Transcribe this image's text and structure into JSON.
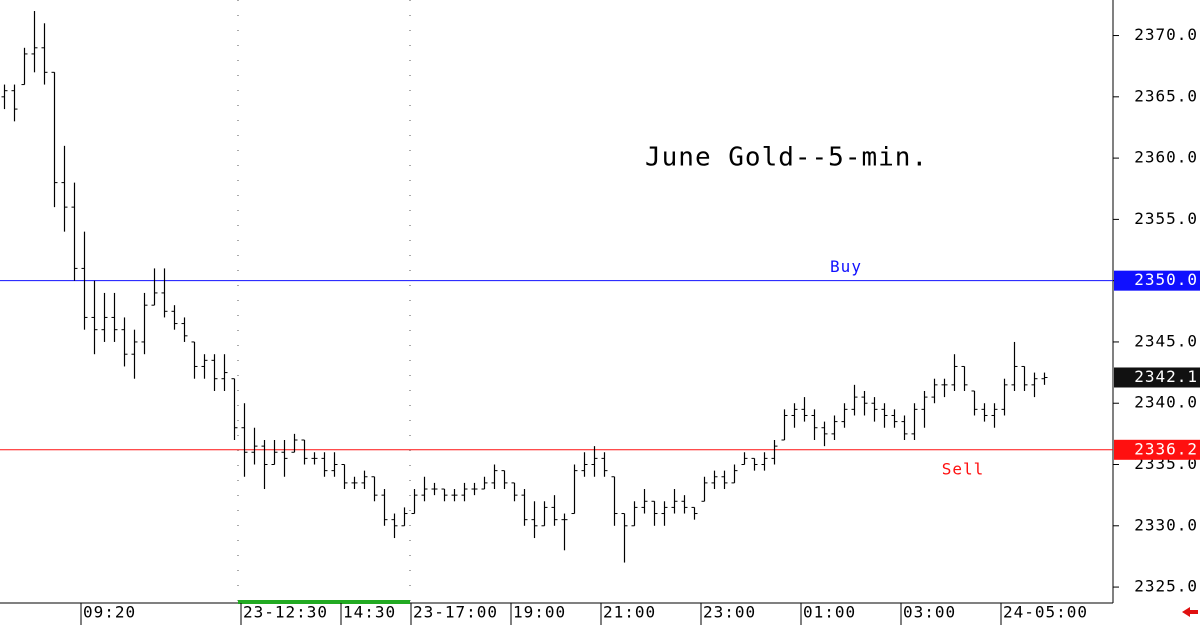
{
  "chart_data": {
    "type": "ohlc",
    "title": "June Gold--5-min.",
    "categories": [
      null,
      null,
      null,
      null,
      null,
      null,
      null,
      null,
      "09:20",
      null,
      null,
      null,
      null,
      null,
      null,
      null,
      null,
      null,
      null,
      null,
      null,
      null,
      null,
      null,
      "23-12:30",
      null,
      null,
      null,
      null,
      null,
      null,
      null,
      null,
      null,
      "14:30",
      null,
      null,
      null,
      null,
      null,
      null,
      "23-17:00",
      null,
      null,
      null,
      null,
      null,
      null,
      null,
      null,
      null,
      "19:00",
      null,
      null,
      null,
      null,
      null,
      null,
      null,
      null,
      "21:00",
      null,
      null,
      null,
      null,
      null,
      null,
      null,
      null,
      null,
      "23:00",
      null,
      null,
      null,
      null,
      null,
      null,
      null,
      null,
      null,
      "01:00",
      null,
      null,
      null,
      null,
      null,
      null,
      null,
      null,
      null,
      "03:00",
      null,
      null,
      null,
      null,
      null,
      null,
      null,
      null,
      null,
      "24-05:00",
      null,
      null,
      null,
      null
    ],
    "open": [
      2365,
      2365.5,
      2366,
      2368.5,
      2369,
      2367,
      2358,
      2356,
      2351,
      2347,
      2346,
      2347,
      2346,
      2344,
      2345,
      2348,
      2349,
      2347.5,
      2346.5,
      2345,
      2343,
      2343.5,
      2342,
      2342,
      2338,
      2336,
      2336.5,
      2335,
      2336,
      2336,
      2337,
      2335.5,
      2335.5,
      2334.5,
      2335,
      2333.5,
      2333.5,
      2334,
      2332.5,
      2330.5,
      2330,
      2331,
      2332.5,
      2333,
      2333,
      2332.5,
      2332.5,
      2333,
      2333,
      2333.5,
      2334.5,
      2333.5,
      2332.5,
      2330.5,
      2330,
      2331.5,
      2330.5,
      2331,
      2334.5,
      2335,
      2335.5,
      2334,
      2331,
      2330,
      2331.5,
      2332,
      2331,
      2331.5,
      2332,
      2331.5,
      2332,
      2333.5,
      2334,
      2333.5,
      2335,
      2335.5,
      2335,
      2335.5,
      2337,
      2339,
      2339.5,
      2339,
      2338,
      2337.5,
      2338.5,
      2339.5,
      2340.5,
      2340,
      2339.5,
      2339,
      2338.5,
      2337.5,
      2339.5,
      2340.5,
      2341.5,
      2341.5,
      2343,
      2341,
      2339.5,
      2339,
      2339.5,
      2341.5,
      2343,
      2341.5,
      2342
    ],
    "high": [
      2366,
      2366,
      2369,
      2372,
      2371,
      2367,
      2361,
      2358,
      2354,
      2350,
      2349,
      2349,
      2347,
      2346,
      2349,
      2351,
      2351,
      2348,
      2347,
      2345,
      2344,
      2344,
      2344,
      2342,
      2340,
      2338,
      2337,
      2337,
      2337,
      2337.5,
      2337,
      2336,
      2336,
      2336,
      2335,
      2334,
      2334.5,
      2334,
      2333,
      2331,
      2331.5,
      2333,
      2334,
      2333.5,
      2333,
      2333,
      2333.5,
      2333.5,
      2334,
      2335,
      2334.5,
      2333.5,
      2333,
      2332,
      2332,
      2332.5,
      2331,
      2335,
      2336,
      2336.5,
      2336,
      2334,
      2331,
      2332,
      2333,
      2332,
      2332,
      2333,
      2332.5,
      2331.5,
      2334,
      2334.5,
      2334.5,
      2335,
      2336,
      2335.5,
      2336,
      2337,
      2339.5,
      2340,
      2340.5,
      2339.5,
      2338.5,
      2339,
      2340,
      2341.5,
      2341,
      2340.5,
      2340,
      2339.5,
      2339,
      2340,
      2341,
      2342,
      2342,
      2344,
      2343,
      2341,
      2340,
      2340,
      2342,
      2345,
      2343,
      2342.5,
      2342.5
    ],
    "low": [
      2364,
      2363,
      2366,
      2367,
      2366,
      2356,
      2354,
      2350,
      2346,
      2344,
      2345,
      2345,
      2343,
      2342,
      2344,
      2348,
      2347,
      2346,
      2345,
      2342,
      2342,
      2341,
      2341,
      2337,
      2334,
      2335,
      2333,
      2335,
      2334,
      2336,
      2335,
      2335,
      2334,
      2334,
      2333,
      2333,
      2333,
      2332,
      2330,
      2329,
      2330,
      2331,
      2332,
      2332.5,
      2332,
      2332,
      2332,
      2332.5,
      2333,
      2333,
      2333,
      2332,
      2330,
      2329,
      2330,
      2330,
      2328,
      2331,
      2334,
      2334,
      2334,
      2330,
      2327,
      2330,
      2331,
      2330,
      2330,
      2331,
      2331,
      2330.5,
      2332,
      2333,
      2333,
      2333.5,
      2335,
      2334.5,
      2334.5,
      2335,
      2337,
      2338,
      2338.5,
      2337,
      2336.5,
      2337,
      2338,
      2339,
      2339,
      2338.5,
      2338,
      2338,
      2337,
      2337,
      2338,
      2340,
      2340.5,
      2341,
      2341,
      2339,
      2338.5,
      2338,
      2339,
      2341,
      2341,
      2340.5,
      2341.5
    ],
    "close": [
      2365.5,
      2364,
      2368.5,
      2369,
      2367,
      2358,
      2356,
      2351,
      2347,
      2346,
      2347,
      2346,
      2344,
      2345,
      2348,
      2349,
      2347.5,
      2346.5,
      2345.5,
      2343,
      2343.5,
      2342,
      2342.5,
      2338,
      2336,
      2336.5,
      2335,
      2336,
      2335.5,
      2337,
      2335.5,
      2335.5,
      2334.5,
      2335,
      2333.5,
      2333.5,
      2334,
      2332.5,
      2330.5,
      2330,
      2331,
      2332.5,
      2333,
      2333,
      2332.5,
      2332.5,
      2333,
      2333,
      2333.5,
      2334.5,
      2333.5,
      2332.5,
      2330.5,
      2330,
      2331.5,
      2330.5,
      2330.5,
      2334.5,
      2335,
      2335.5,
      2334.5,
      2331,
      2330,
      2331.5,
      2332,
      2331,
      2331.5,
      2332,
      2331.5,
      2331,
      2333.5,
      2334,
      2333.5,
      2334.5,
      2335.5,
      2335,
      2335.5,
      2336.5,
      2339,
      2339.5,
      2339,
      2338,
      2337.5,
      2338.5,
      2339.5,
      2340.5,
      2340,
      2339.5,
      2339,
      2338.5,
      2337.5,
      2339.5,
      2340.5,
      2341.5,
      2341.5,
      2343,
      2341.5,
      2339.5,
      2339,
      2339.5,
      2341.5,
      2343,
      2341.5,
      2342,
      2342.1
    ],
    "ylim": [
      2323.7,
      2372.9
    ],
    "yticks": [
      {
        "value": 2325,
        "label": "2325.0"
      },
      {
        "value": 2330,
        "label": "2330.0"
      },
      {
        "value": 2335,
        "label": "2335.0"
      },
      {
        "value": 2340,
        "label": "2340.0"
      },
      {
        "value": 2345,
        "label": "2345.0"
      },
      {
        "value": 2350,
        "label": "2350.0"
      },
      {
        "value": 2355,
        "label": "2355.0"
      },
      {
        "value": 2360,
        "label": "2360.0"
      },
      {
        "value": 2365,
        "label": "2365.0"
      },
      {
        "value": 2370,
        "label": "2370.0"
      }
    ],
    "levels": [
      {
        "name": "Buy",
        "value": 2350,
        "label": "2350.0",
        "color": "#1010ff"
      },
      {
        "name": "Sell",
        "value": 2336.2,
        "label": "2336.2",
        "color": "#ff1010"
      }
    ],
    "last_price": 2342.1,
    "color": "#000000"
  }
}
